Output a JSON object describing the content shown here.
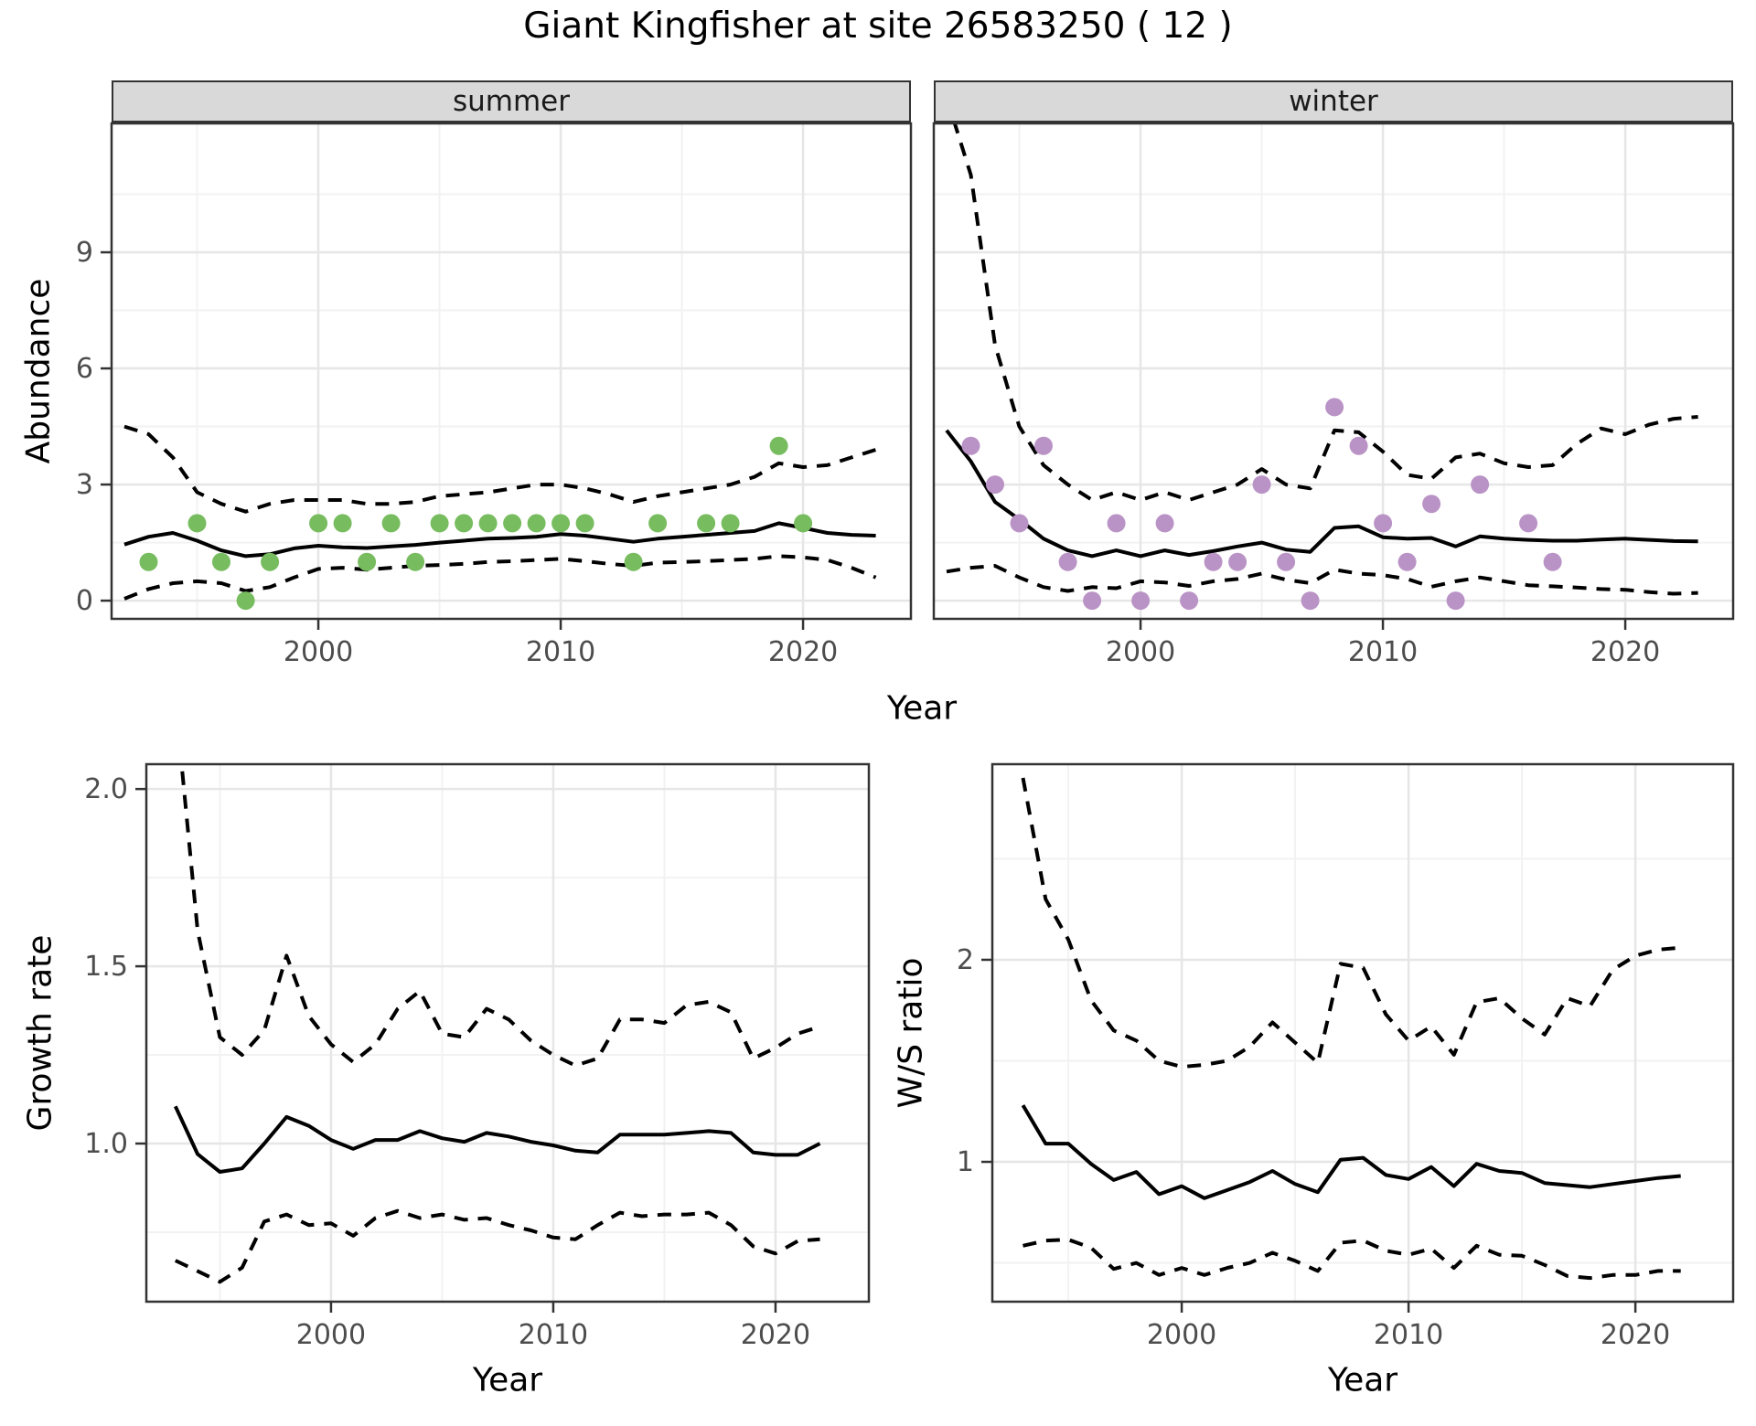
{
  "title": "Giant Kingfisher at site 26583250 ( 12 )",
  "facets": {
    "summer_label": "summer",
    "winter_label": "winter"
  },
  "axes": {
    "abundance_label": "Abundance",
    "year_label_top": "Year",
    "growth_label": "Growth rate",
    "ws_label": "W/S ratio",
    "year_label_bottom_left": "Year",
    "year_label_bottom_right": "Year"
  },
  "colors": {
    "summer_point": "#77BC5E",
    "winter_point": "#BA93C6",
    "line": "#000000",
    "strip_bg": "#D9D9D9",
    "panel_border": "#333333",
    "grid_major": "#E6E6E6",
    "grid_minor": "#F2F2F2",
    "tick_text": "#4D4D4D"
  },
  "chart_data": [
    {
      "type": "line",
      "facet": "summer",
      "xlabel": "Year",
      "ylabel": "Abundance",
      "xlim": [
        1991.47,
        2024.45
      ],
      "ylim": [
        -0.47,
        12.33
      ],
      "x_ticks": [
        2000,
        2010,
        2020
      ],
      "x_tick_labels": [
        "2000",
        "2010",
        "2020"
      ],
      "x_minor": [
        1995,
        2005,
        2015
      ],
      "y_ticks": [
        0,
        3,
        6,
        9
      ],
      "y_tick_labels": [
        "0",
        "3",
        "6",
        "9"
      ],
      "y_minor": [
        1.5,
        4.5,
        7.5,
        10.5
      ],
      "grid": true,
      "legend": "none",
      "years": [
        1992,
        1993,
        1994,
        1995,
        1996,
        1997,
        1998,
        1999,
        2000,
        2001,
        2002,
        2003,
        2004,
        2005,
        2006,
        2007,
        2008,
        2009,
        2010,
        2011,
        2012,
        2013,
        2014,
        2015,
        2016,
        2017,
        2018,
        2019,
        2020,
        2021,
        2022,
        2023
      ],
      "series": [
        {
          "name": "median",
          "style": "solid",
          "values": [
            1.45,
            1.65,
            1.75,
            1.55,
            1.3,
            1.15,
            1.2,
            1.35,
            1.42,
            1.38,
            1.36,
            1.4,
            1.44,
            1.5,
            1.55,
            1.6,
            1.62,
            1.65,
            1.72,
            1.68,
            1.6,
            1.52,
            1.6,
            1.65,
            1.7,
            1.75,
            1.8,
            2.0,
            1.88,
            1.75,
            1.7,
            1.68
          ]
        },
        {
          "name": "upper_ci",
          "style": "dashed",
          "values": [
            4.5,
            4.3,
            3.7,
            2.8,
            2.5,
            2.3,
            2.5,
            2.6,
            2.6,
            2.6,
            2.5,
            2.5,
            2.55,
            2.7,
            2.75,
            2.8,
            2.9,
            3.0,
            3.0,
            2.9,
            2.75,
            2.55,
            2.7,
            2.8,
            2.9,
            3.0,
            3.2,
            3.55,
            3.45,
            3.5,
            3.7,
            3.9
          ]
        },
        {
          "name": "lower_ci",
          "style": "dashed",
          "values": [
            0.05,
            0.3,
            0.45,
            0.5,
            0.45,
            0.25,
            0.35,
            0.6,
            0.82,
            0.85,
            0.8,
            0.85,
            0.9,
            0.92,
            0.95,
            1.0,
            1.02,
            1.05,
            1.08,
            1.02,
            0.95,
            0.9,
            0.98,
            1.0,
            1.02,
            1.05,
            1.08,
            1.15,
            1.12,
            1.05,
            0.85,
            0.6
          ]
        }
      ],
      "points": {
        "color": "#77BC5E",
        "years": [
          1993,
          1995,
          1996,
          1997,
          1998,
          2000,
          2001,
          2002,
          2003,
          2004,
          2005,
          2006,
          2007,
          2008,
          2009,
          2010,
          2011,
          2013,
          2014,
          2016,
          2017,
          2019,
          2020
        ],
        "values": [
          1,
          2,
          1,
          0,
          1,
          2,
          2,
          1,
          2,
          1,
          2,
          2,
          2,
          2,
          2,
          2,
          2,
          1,
          2,
          2,
          2,
          4,
          2
        ]
      }
    },
    {
      "type": "line",
      "facet": "winter",
      "xlabel": "Year",
      "ylabel": "Abundance",
      "xlim": [
        1991.47,
        2024.45
      ],
      "ylim": [
        -0.47,
        12.33
      ],
      "x_ticks": [
        2000,
        2010,
        2020
      ],
      "x_tick_labels": [
        "2000",
        "2010",
        "2020"
      ],
      "x_minor": [
        1995,
        2005,
        2015
      ],
      "y_ticks": [
        0,
        3,
        6,
        9
      ],
      "y_tick_labels": [
        "0",
        "3",
        "6",
        "9"
      ],
      "y_minor": [
        1.5,
        4.5,
        7.5,
        10.5
      ],
      "grid": true,
      "legend": "none",
      "years": [
        1992,
        1993,
        1994,
        1995,
        1996,
        1997,
        1998,
        1999,
        2000,
        2001,
        2002,
        2003,
        2004,
        2005,
        2006,
        2007,
        2008,
        2009,
        2010,
        2011,
        2012,
        2013,
        2014,
        2015,
        2016,
        2017,
        2018,
        2019,
        2020,
        2021,
        2022,
        2023
      ],
      "series": [
        {
          "name": "median",
          "style": "solid",
          "values": [
            4.4,
            3.6,
            2.55,
            2.1,
            1.6,
            1.3,
            1.15,
            1.3,
            1.15,
            1.3,
            1.18,
            1.28,
            1.4,
            1.5,
            1.32,
            1.26,
            1.88,
            1.92,
            1.64,
            1.6,
            1.62,
            1.4,
            1.66,
            1.6,
            1.57,
            1.55,
            1.55,
            1.58,
            1.6,
            1.57,
            1.54,
            1.53
          ]
        },
        {
          "name": "upper_ci",
          "style": "dashed",
          "values": [
            13,
            11,
            6.6,
            4.5,
            3.5,
            3.0,
            2.6,
            2.8,
            2.6,
            2.8,
            2.6,
            2.8,
            3.0,
            3.4,
            3.0,
            2.9,
            4.4,
            4.35,
            3.85,
            3.25,
            3.15,
            3.7,
            3.8,
            3.55,
            3.45,
            3.5,
            4.05,
            4.45,
            4.3,
            4.55,
            4.7,
            4.75
          ]
        },
        {
          "name": "lower_ci",
          "style": "dashed",
          "values": [
            0.75,
            0.85,
            0.9,
            0.6,
            0.35,
            0.25,
            0.35,
            0.32,
            0.5,
            0.47,
            0.38,
            0.5,
            0.56,
            0.7,
            0.54,
            0.45,
            0.8,
            0.7,
            0.66,
            0.56,
            0.36,
            0.5,
            0.6,
            0.5,
            0.4,
            0.37,
            0.34,
            0.3,
            0.28,
            0.22,
            0.18,
            0.2
          ]
        }
      ],
      "points": {
        "color": "#BA93C6",
        "years": [
          1993,
          1994,
          1995,
          1996,
          1997,
          1998,
          1999,
          2000,
          2001,
          2002,
          2003,
          2004,
          2005,
          2006,
          2007,
          2008,
          2009,
          2010,
          2011,
          2012,
          2013,
          2014,
          2016,
          2017
        ],
        "values": [
          4,
          3,
          2,
          4,
          1,
          0,
          2,
          0,
          2,
          0,
          1,
          1,
          3,
          1,
          0,
          5,
          4,
          2,
          1,
          2.5,
          0,
          3,
          2,
          1
        ]
      }
    },
    {
      "type": "line",
      "facet": "growth_rate",
      "xlabel": "Year",
      "ylabel": "Growth rate",
      "xlim": [
        1991.69,
        2024.2
      ],
      "ylim": [
        0.554,
        2.07
      ],
      "x_ticks": [
        2000,
        2010,
        2020
      ],
      "x_tick_labels": [
        "2000",
        "2010",
        "2020"
      ],
      "x_minor": [
        1995,
        2005,
        2015
      ],
      "y_ticks": [
        1.0,
        1.5,
        2.0
      ],
      "y_tick_labels": [
        "1.0",
        "1.5",
        "2.0"
      ],
      "y_minor": [
        0.75,
        1.25,
        1.75
      ],
      "grid": true,
      "legend": "none",
      "years": [
        1993,
        1994,
        1995,
        1996,
        1997,
        1998,
        1999,
        2000,
        2001,
        2002,
        2003,
        2004,
        2005,
        2006,
        2007,
        2008,
        2009,
        2010,
        2011,
        2012,
        2013,
        2014,
        2015,
        2016,
        2017,
        2018,
        2019,
        2020,
        2021,
        2022
      ],
      "series": [
        {
          "name": "median",
          "style": "solid",
          "values": [
            1.105,
            0.97,
            0.92,
            0.93,
            1.0,
            1.075,
            1.05,
            1.01,
            0.985,
            1.01,
            1.01,
            1.035,
            1.015,
            1.005,
            1.03,
            1.02,
            1.005,
            0.995,
            0.98,
            0.975,
            1.025,
            1.025,
            1.025,
            1.03,
            1.035,
            1.03,
            0.975,
            0.968,
            0.968,
            1.0
          ]
        },
        {
          "name": "upper_ci",
          "style": "dashed",
          "values": [
            2.25,
            1.6,
            1.3,
            1.25,
            1.32,
            1.53,
            1.36,
            1.28,
            1.23,
            1.28,
            1.38,
            1.43,
            1.31,
            1.3,
            1.38,
            1.35,
            1.29,
            1.25,
            1.22,
            1.24,
            1.35,
            1.35,
            1.34,
            1.39,
            1.4,
            1.37,
            1.24,
            1.27,
            1.31,
            1.33
          ]
        },
        {
          "name": "lower_ci",
          "style": "dashed",
          "values": [
            0.67,
            0.64,
            0.61,
            0.65,
            0.78,
            0.8,
            0.77,
            0.775,
            0.74,
            0.79,
            0.81,
            0.79,
            0.8,
            0.785,
            0.79,
            0.77,
            0.755,
            0.735,
            0.73,
            0.77,
            0.805,
            0.795,
            0.8,
            0.8,
            0.805,
            0.77,
            0.71,
            0.69,
            0.725,
            0.73
          ]
        }
      ],
      "points": null
    },
    {
      "type": "line",
      "facet": "ws_ratio",
      "xlabel": "Year",
      "ylabel": "W/S ratio",
      "xlim": [
        1991.65,
        2024.31
      ],
      "ylim": [
        0.308,
        2.968
      ],
      "x_ticks": [
        2000,
        2010,
        2020
      ],
      "x_tick_labels": [
        "2000",
        "2010",
        "2020"
      ],
      "x_minor": [
        1995,
        2005,
        2015
      ],
      "y_ticks": [
        1,
        2
      ],
      "y_tick_labels": [
        "1",
        "2"
      ],
      "y_minor": [
        0.5,
        1.5,
        2.5
      ],
      "grid": true,
      "legend": "none",
      "years": [
        1993,
        1994,
        1995,
        1996,
        1997,
        1998,
        1999,
        2000,
        2001,
        2002,
        2003,
        2004,
        2005,
        2006,
        2007,
        2008,
        2009,
        2010,
        2011,
        2012,
        2013,
        2014,
        2015,
        2016,
        2017,
        2018,
        2019,
        2020,
        2021,
        2022
      ],
      "series": [
        {
          "name": "median",
          "style": "solid",
          "values": [
            1.28,
            1.09,
            1.09,
            0.99,
            0.91,
            0.95,
            0.84,
            0.88,
            0.82,
            0.86,
            0.9,
            0.955,
            0.89,
            0.85,
            1.01,
            1.02,
            0.935,
            0.915,
            0.975,
            0.88,
            0.99,
            0.955,
            0.945,
            0.895,
            0.885,
            0.875,
            0.89,
            0.905,
            0.92,
            0.93
          ]
        },
        {
          "name": "upper_ci",
          "style": "dashed",
          "values": [
            2.9,
            2.3,
            2.1,
            1.8,
            1.65,
            1.6,
            1.5,
            1.47,
            1.48,
            1.5,
            1.57,
            1.69,
            1.59,
            1.49,
            1.98,
            1.96,
            1.73,
            1.6,
            1.67,
            1.53,
            1.79,
            1.81,
            1.71,
            1.63,
            1.81,
            1.77,
            1.95,
            2.02,
            2.05,
            2.06
          ]
        },
        {
          "name": "lower_ci",
          "style": "dashed",
          "values": [
            0.585,
            0.61,
            0.615,
            0.575,
            0.47,
            0.5,
            0.44,
            0.475,
            0.44,
            0.475,
            0.5,
            0.55,
            0.51,
            0.46,
            0.6,
            0.61,
            0.56,
            0.54,
            0.57,
            0.475,
            0.585,
            0.54,
            0.535,
            0.49,
            0.435,
            0.425,
            0.44,
            0.44,
            0.46,
            0.46
          ]
        }
      ],
      "points": null
    }
  ]
}
